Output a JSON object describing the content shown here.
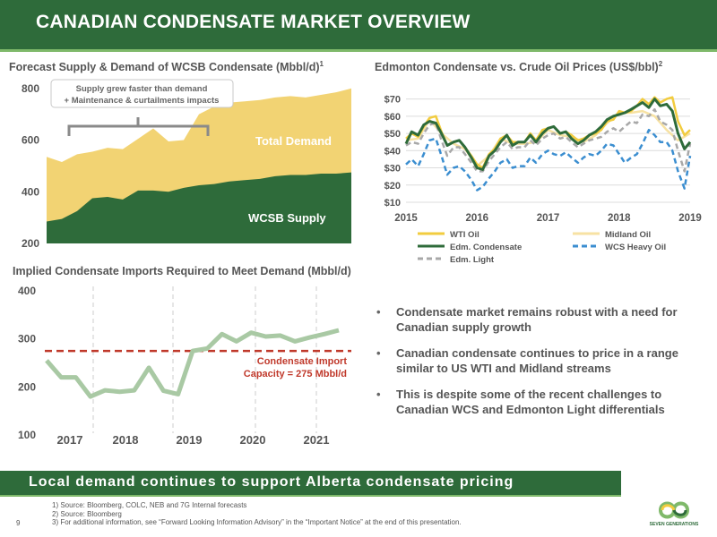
{
  "header": {
    "title": "CANADIAN CONDENSATE MARKET OVERVIEW"
  },
  "chart1": {
    "title": "Forecast Supply & Demand of WCSB Condensate (Mbbl/d)",
    "title_sup": "1"
  },
  "chart2": {
    "title": "Edmonton Condensate vs. Crude Oil Prices (US$/bbl)",
    "title_sup": "2"
  },
  "chart3": {
    "title": "Implied Condensate Imports Required to Meet Demand (Mbbl/d)"
  },
  "chart_data": [
    {
      "type": "area",
      "title": "Forecast Supply & Demand of WCSB Condensate (Mbbl/d)",
      "ylim": [
        200,
        820
      ],
      "yticks": [
        200,
        400,
        600,
        800
      ],
      "x": [
        0,
        1,
        2,
        3,
        4,
        5,
        6,
        7,
        8,
        9,
        10,
        11,
        12,
        13,
        14,
        15,
        16,
        17,
        18,
        19,
        20
      ],
      "series": [
        {
          "name": "Total Demand",
          "color": "#f2d373",
          "values": [
            535,
            515,
            545,
            555,
            570,
            565,
            605,
            645,
            595,
            600,
            700,
            730,
            745,
            750,
            755,
            765,
            770,
            765,
            775,
            785,
            800
          ]
        },
        {
          "name": "WCSB Supply",
          "color": "#2e6b3a",
          "values": [
            285,
            295,
            325,
            375,
            380,
            370,
            405,
            405,
            400,
            415,
            425,
            430,
            440,
            445,
            450,
            460,
            465,
            465,
            470,
            470,
            475
          ]
        }
      ],
      "annotation": {
        "text_line1": "Supply grew faster than demand",
        "text_line2": "+ Maintenance & curtailments impacts"
      },
      "grid": false
    },
    {
      "type": "line",
      "title": "Edmonton Condensate vs. Crude Oil Prices (US$/bbl)",
      "ylim": [
        10,
        75
      ],
      "yticks": [
        "$10",
        "$20",
        "$30",
        "$40",
        "$50",
        "$60",
        "$70"
      ],
      "ytick_values": [
        10,
        20,
        30,
        40,
        50,
        60,
        70
      ],
      "xlim": [
        2015,
        2019
      ],
      "xticks": [
        "2015",
        "2016",
        "2017",
        "2018",
        "2019"
      ],
      "grid": true,
      "legend": "bottom",
      "series": [
        {
          "name": "WTI Oil",
          "color": "#f2cc3f",
          "dash": false,
          "x": [
            2015.0,
            2015.08,
            2015.17,
            2015.25,
            2015.33,
            2015.42,
            2015.5,
            2015.58,
            2015.67,
            2015.75,
            2015.83,
            2015.92,
            2016.0,
            2016.08,
            2016.17,
            2016.25,
            2016.33,
            2016.42,
            2016.5,
            2016.58,
            2016.67,
            2016.75,
            2016.83,
            2016.92,
            2017.0,
            2017.08,
            2017.17,
            2017.25,
            2017.33,
            2017.42,
            2017.5,
            2017.58,
            2017.67,
            2017.75,
            2017.83,
            2017.92,
            2018.0,
            2018.08,
            2018.17,
            2018.25,
            2018.33,
            2018.42,
            2018.5,
            2018.58,
            2018.67,
            2018.75,
            2018.83,
            2018.92,
            2019.0
          ],
          "values": [
            47,
            50,
            48,
            54,
            59,
            60,
            51,
            43,
            45,
            46,
            42,
            37,
            32,
            30,
            38,
            41,
            47,
            49,
            45,
            45,
            45,
            50,
            46,
            52,
            53,
            54,
            50,
            51,
            49,
            46,
            47,
            49,
            50,
            52,
            57,
            58,
            63,
            62,
            63,
            66,
            70,
            67,
            71,
            68,
            70,
            71,
            57,
            49,
            52
          ]
        },
        {
          "name": "Midland Oil",
          "color": "#f7e2a3",
          "dash": false,
          "x": [
            2015.0,
            2015.17,
            2015.33,
            2015.5,
            2015.67,
            2015.83,
            2016.0,
            2016.17,
            2016.33,
            2016.5,
            2016.67,
            2016.83,
            2017.0,
            2017.17,
            2017.33,
            2017.5,
            2017.67,
            2017.83,
            2018.0,
            2018.17,
            2018.33,
            2018.5,
            2018.67,
            2018.83,
            2019.0
          ],
          "values": [
            46,
            47,
            58,
            50,
            44,
            41,
            31,
            37,
            47,
            44,
            44,
            45,
            52,
            49,
            48,
            45,
            49,
            56,
            62,
            62,
            63,
            60,
            52,
            46,
            50
          ]
        },
        {
          "name": "Edm. Condensate",
          "color": "#2e6b3a",
          "dash": false,
          "x": [
            2015.0,
            2015.08,
            2015.17,
            2015.25,
            2015.33,
            2015.42,
            2015.5,
            2015.58,
            2015.67,
            2015.75,
            2015.83,
            2015.92,
            2016.0,
            2016.08,
            2016.17,
            2016.25,
            2016.33,
            2016.42,
            2016.5,
            2016.58,
            2016.67,
            2016.75,
            2016.83,
            2016.92,
            2017.0,
            2017.08,
            2017.17,
            2017.25,
            2017.33,
            2017.42,
            2017.5,
            2017.58,
            2017.67,
            2017.75,
            2017.83,
            2017.92,
            2018.0,
            2018.08,
            2018.17,
            2018.25,
            2018.33,
            2018.42,
            2018.5,
            2018.58,
            2018.67,
            2018.75,
            2018.83,
            2018.92,
            2019.0
          ],
          "values": [
            44,
            51,
            49,
            55,
            57,
            56,
            50,
            43,
            45,
            46,
            42,
            36,
            30,
            29,
            37,
            40,
            45,
            49,
            43,
            45,
            45,
            49,
            45,
            50,
            53,
            54,
            50,
            51,
            47,
            44,
            46,
            49,
            51,
            54,
            58,
            60,
            61,
            62,
            64,
            66,
            68,
            65,
            70,
            66,
            67,
            63,
            50,
            41,
            45
          ]
        },
        {
          "name": "WCS Heavy Oil",
          "color": "#3b8ed0",
          "dash": true,
          "x": [
            2015.0,
            2015.08,
            2015.17,
            2015.25,
            2015.33,
            2015.42,
            2015.5,
            2015.58,
            2015.67,
            2015.75,
            2015.83,
            2015.92,
            2016.0,
            2016.08,
            2016.17,
            2016.25,
            2016.33,
            2016.42,
            2016.5,
            2016.58,
            2016.67,
            2016.75,
            2016.83,
            2016.92,
            2017.0,
            2017.08,
            2017.17,
            2017.25,
            2017.33,
            2017.42,
            2017.5,
            2017.58,
            2017.67,
            2017.75,
            2017.83,
            2017.92,
            2018.0,
            2018.08,
            2018.17,
            2018.25,
            2018.33,
            2018.42,
            2018.5,
            2018.58,
            2018.67,
            2018.75,
            2018.83,
            2018.92,
            2019.0
          ],
          "values": [
            32,
            35,
            31,
            38,
            46,
            47,
            37,
            26,
            30,
            31,
            28,
            23,
            17,
            19,
            24,
            28,
            33,
            35,
            30,
            31,
            31,
            36,
            33,
            38,
            40,
            38,
            37,
            39,
            36,
            33,
            36,
            38,
            37,
            40,
            44,
            43,
            38,
            33,
            36,
            38,
            44,
            52,
            49,
            45,
            45,
            40,
            28,
            18,
            37
          ]
        },
        {
          "name": "Edm. Light",
          "color": "#a8a8a8",
          "dash": true,
          "x": [
            2015.0,
            2015.08,
            2015.17,
            2015.25,
            2015.33,
            2015.42,
            2015.5,
            2015.58,
            2015.67,
            2015.75,
            2015.83,
            2015.92,
            2016.0,
            2016.08,
            2016.17,
            2016.25,
            2016.33,
            2016.42,
            2016.5,
            2016.58,
            2016.67,
            2016.75,
            2016.83,
            2016.92,
            2017.0,
            2017.08,
            2017.17,
            2017.25,
            2017.33,
            2017.42,
            2017.5,
            2017.58,
            2017.67,
            2017.75,
            2017.83,
            2017.92,
            2018.0,
            2018.08,
            2018.17,
            2018.25,
            2018.33,
            2018.42,
            2018.5,
            2018.58,
            2018.67,
            2018.75,
            2018.83,
            2018.92,
            2019.0
          ],
          "values": [
            43,
            45,
            44,
            50,
            55,
            56,
            46,
            37,
            42,
            42,
            38,
            33,
            28,
            28,
            34,
            38,
            42,
            45,
            41,
            42,
            42,
            46,
            43,
            47,
            49,
            50,
            47,
            48,
            45,
            42,
            44,
            46,
            47,
            48,
            51,
            53,
            51,
            54,
            57,
            56,
            61,
            60,
            64,
            57,
            55,
            52,
            40,
            28,
            44
          ]
        }
      ]
    },
    {
      "type": "line",
      "title": "Implied Condensate Imports Required to Meet Demand (Mbbl/d)",
      "ylim": [
        100,
        400
      ],
      "yticks": [
        100,
        200,
        300,
        400
      ],
      "xticks": [
        "2017",
        "2018",
        "2019",
        "2020",
        "2021"
      ],
      "grid": false,
      "series": [
        {
          "name": "Implied Condensate Imports",
          "color": "#a9c9a4",
          "x": [
            0,
            1,
            2,
            3,
            4,
            5,
            6,
            7,
            8,
            9,
            10,
            11,
            12,
            13,
            14,
            15,
            16,
            17,
            18,
            19,
            20
          ],
          "values": [
            255,
            220,
            220,
            180,
            193,
            190,
            193,
            240,
            192,
            185,
            275,
            280,
            310,
            295,
            313,
            305,
            307,
            295,
            303,
            310,
            318
          ]
        }
      ],
      "threshold": {
        "value": 275,
        "color": "#c0392b",
        "label_line1": "Condensate Import",
        "label_line2": "Capacity = 275 Mbbl/d"
      }
    }
  ],
  "bullets": [
    "Condensate market remains robust with a need for Canadian supply growth",
    "Canadian condensate continues to price in a range similar to US WTI and Midland streams",
    "This is despite some of the recent challenges to Canadian WCS and Edmonton Light differentials"
  ],
  "bullet_symbol": "•",
  "footer": {
    "banner": "Local demand continues to support Alberta condensate pricing"
  },
  "notes": [
    "1)  Source: Bloomberg, COLC, NEB and 7G Internal forecasts",
    "2)  Source: Bloomberg",
    "3)  For additional information, see “Forward Looking Information Advisory” in the “Important Notice” at the end of this presentation."
  ],
  "page_number": "9",
  "logo_text": "SEVEN GENERATIONS"
}
